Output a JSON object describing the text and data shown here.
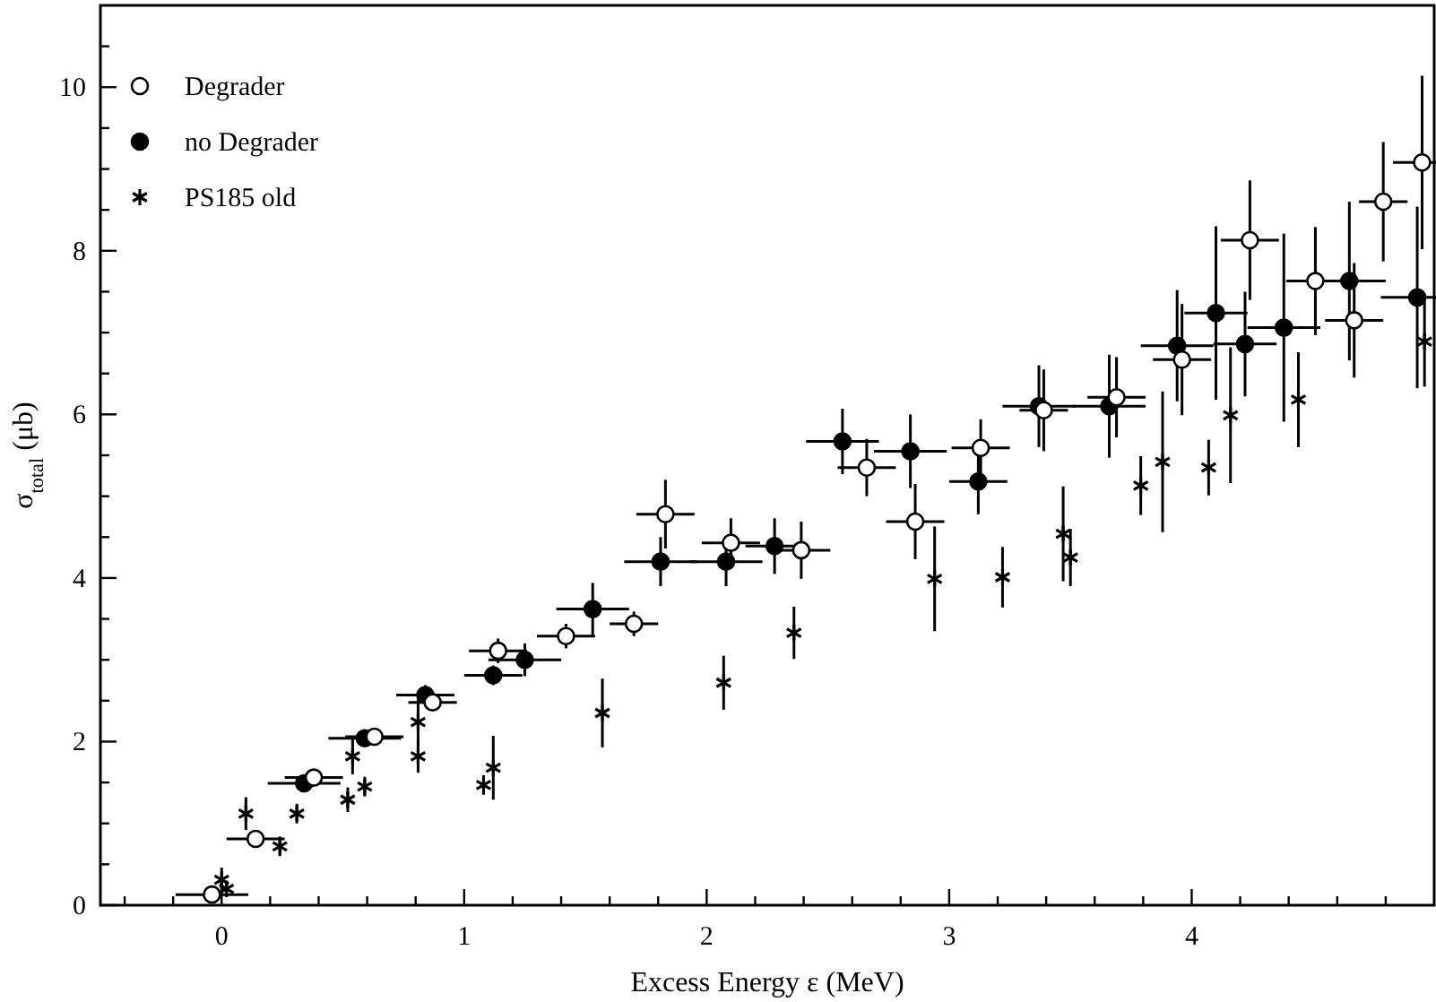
{
  "chart_data": {
    "type": "scatter",
    "xlabel": "Excess Energy ε (MeV)",
    "ylabel": "σ$_{total}$ (μb)",
    "xlim": [
      -0.5,
      5.0
    ],
    "ylim": [
      0,
      11
    ],
    "xticks": [
      {
        "value": -0.4,
        "label": null
      },
      {
        "value": -0.2,
        "label": null
      },
      0,
      {
        "value": 0.2,
        "label": null
      },
      {
        "value": 0.4,
        "label": null
      },
      {
        "value": 0.6,
        "label": null
      },
      {
        "value": 0.8,
        "label": null
      },
      1,
      {
        "value": 1.2,
        "label": null
      },
      {
        "value": 1.4,
        "label": null
      },
      {
        "value": 1.6,
        "label": null
      },
      {
        "value": 1.8,
        "label": null
      },
      2,
      {
        "value": 2.2,
        "label": null
      },
      {
        "value": 2.4,
        "label": null
      },
      {
        "value": 2.6,
        "label": null
      },
      {
        "value": 2.8,
        "label": null
      },
      3,
      {
        "value": 3.2,
        "label": null
      },
      {
        "value": 3.4,
        "label": null
      },
      {
        "value": 3.6,
        "label": null
      },
      {
        "value": 3.8,
        "label": null
      },
      4,
      {
        "value": 4.2,
        "label": null
      },
      {
        "value": 4.4,
        "label": null
      },
      {
        "value": 4.6,
        "label": null
      },
      {
        "value": 4.8,
        "label": null
      }
    ],
    "yticks": [
      0,
      {
        "value": 0.5,
        "label": null
      },
      {
        "value": 1,
        "label": null
      },
      {
        "value": 1.5,
        "label": null
      },
      2,
      {
        "value": 2.5,
        "label": null
      },
      {
        "value": 3,
        "label": null
      },
      {
        "value": 3.5,
        "label": null
      },
      4,
      {
        "value": 4.5,
        "label": null
      },
      {
        "value": 5,
        "label": null
      },
      {
        "value": 5.5,
        "label": null
      },
      6,
      {
        "value": 6.5,
        "label": null
      },
      {
        "value": 7,
        "label": null
      },
      {
        "value": 7.5,
        "label": null
      },
      8,
      {
        "value": 8.5,
        "label": null
      },
      {
        "value": 9,
        "label": null
      },
      {
        "value": 9.5,
        "label": null
      },
      10,
      {
        "value": 10.5,
        "label": null
      }
    ],
    "grid": false,
    "legend": "top left",
    "series": [
      {
        "name": "Degrader",
        "color": "#ffffff",
        "marker": "circle",
        "x": [
          -0.04,
          0.14,
          0.38,
          0.63,
          0.87,
          1.14,
          1.42,
          1.7,
          1.83,
          2.1,
          2.39,
          2.66,
          2.86,
          3.13,
          3.39,
          3.69,
          3.96,
          4.24,
          4.51,
          4.67,
          4.79,
          4.95
        ],
        "values": [
          0.13,
          0.81,
          1.56,
          2.06,
          2.48,
          3.11,
          3.29,
          3.44,
          4.78,
          4.43,
          4.34,
          5.35,
          4.69,
          5.59,
          6.05,
          6.21,
          6.67,
          8.13,
          7.63,
          7.15,
          8.6,
          9.08
        ],
        "errors": [
          0.05,
          0.05,
          0.08,
          0.08,
          0.1,
          0.15,
          0.15,
          0.15,
          0.42,
          0.3,
          0.35,
          0.35,
          0.46,
          0.35,
          0.5,
          0.49,
          0.68,
          0.73,
          0.66,
          0.7,
          0.73,
          1.06
        ],
        "xerrors": [
          0.15,
          0.12,
          0.12,
          0.12,
          0.1,
          0.12,
          0.12,
          0.1,
          0.12,
          0.12,
          0.12,
          0.12,
          0.12,
          0.12,
          0.1,
          0.12,
          0.12,
          0.12,
          0.12,
          0.12,
          0.1,
          0.12
        ]
      },
      {
        "name": "no Degrader",
        "color": "#000000",
        "marker": "circle",
        "x": [
          0.34,
          0.59,
          0.84,
          1.12,
          1.25,
          1.53,
          1.81,
          2.08,
          2.28,
          2.56,
          2.84,
          3.12,
          3.37,
          3.66,
          3.94,
          4.1,
          4.22,
          4.38,
          4.65,
          4.93
        ],
        "values": [
          1.49,
          2.04,
          2.57,
          2.81,
          3.0,
          3.62,
          4.2,
          4.2,
          4.39,
          5.67,
          5.55,
          5.18,
          6.1,
          6.1,
          6.84,
          7.24,
          6.86,
          7.06,
          7.63,
          7.43
        ],
        "errors": [
          0.08,
          0.1,
          0.12,
          0.12,
          0.2,
          0.32,
          0.3,
          0.3,
          0.34,
          0.4,
          0.45,
          0.4,
          0.5,
          0.63,
          0.68,
          1.06,
          0.64,
          1.15,
          0.97,
          1.11
        ],
        "xerrors": [
          0.15,
          0.15,
          0.12,
          0.12,
          0.15,
          0.15,
          0.15,
          0.15,
          0.12,
          0.15,
          0.15,
          0.12,
          0.15,
          0.15,
          0.15,
          0.13,
          0.13,
          0.15,
          0.15,
          0.15
        ]
      },
      {
        "name": "PS185 old",
        "color": "#000000",
        "marker": "cross",
        "x": [
          0.0,
          0.02,
          0.1,
          0.24,
          0.31,
          0.52,
          0.54,
          0.59,
          0.81,
          0.81,
          1.08,
          1.12,
          1.57,
          2.07,
          2.36,
          2.94,
          3.22,
          3.47,
          3.5,
          3.79,
          3.88,
          4.07,
          4.16,
          4.44,
          4.96
        ],
        "values": [
          0.31,
          0.2,
          1.12,
          0.72,
          1.12,
          1.29,
          1.82,
          1.45,
          2.24,
          1.82,
          1.47,
          1.68,
          2.35,
          2.72,
          3.33,
          3.99,
          4.01,
          4.54,
          4.25,
          5.13,
          5.42,
          5.35,
          5.99,
          6.18,
          6.89
        ],
        "errors": [
          0.15,
          0.1,
          0.2,
          0.12,
          0.12,
          0.15,
          0.22,
          0.12,
          0.3,
          0.2,
          0.12,
          0.39,
          0.42,
          0.33,
          0.32,
          0.64,
          0.37,
          0.58,
          0.35,
          0.36,
          0.86,
          0.34,
          0.83,
          0.58,
          0.55
        ]
      }
    ]
  }
}
